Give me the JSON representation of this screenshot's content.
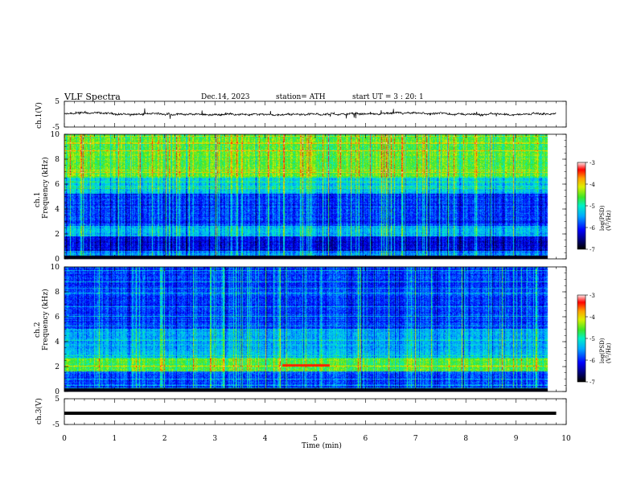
{
  "header": {
    "title": "VLF  Spectra",
    "date": "Dec.14, 2023",
    "station": "station= ATH",
    "start": "start  UT  =    3  : 20: 1"
  },
  "chart_data": [
    {
      "type": "line",
      "name": "ch1-waveform",
      "ylabel": "ch.1(V)",
      "ylim": [
        -5,
        5
      ],
      "yticks": [
        "5",
        "-5"
      ],
      "xlim": [
        0,
        10
      ]
    },
    {
      "type": "heatmap",
      "name": "ch1-spectrogram",
      "ylabel_top": "ch.1",
      "ylabel": "Frequency  (kHz)",
      "ylim": [
        0,
        10
      ],
      "yticks": [
        "0",
        "2",
        "4",
        "6",
        "8",
        "10"
      ],
      "xlim": [
        0,
        10
      ],
      "data_end_min": 9.8,
      "colorbar": {
        "label": "log(PSD)(V²/Hz)",
        "range": [
          -7,
          -3
        ],
        "ticks": [
          "-3",
          "-4",
          "-5",
          "-6",
          "-7"
        ]
      }
    },
    {
      "type": "heatmap",
      "name": "ch2-spectrogram",
      "ylabel_top": "ch.2",
      "ylabel": "Frequency  (kHz)",
      "ylim": [
        0,
        10
      ],
      "yticks": [
        "0",
        "2",
        "4",
        "6",
        "8",
        "10"
      ],
      "xlim": [
        0,
        10
      ],
      "data_end_min": 9.8,
      "colorbar": {
        "label": "log(PSD)(V²/Hz)",
        "range": [
          -7,
          -3
        ],
        "ticks": [
          "-3",
          "-4",
          "-5",
          "-6",
          "-7"
        ]
      }
    },
    {
      "type": "line",
      "name": "ch3-waveform",
      "ylabel": "ch.3(V)",
      "ylim": [
        -5,
        5
      ],
      "yticks": [
        "5",
        "-5"
      ],
      "xlim": [
        0,
        10
      ],
      "xlabel": "Time  (min)",
      "xticks": [
        "0",
        "1",
        "2",
        "3",
        "4",
        "5",
        "6",
        "7",
        "8",
        "9",
        "10"
      ]
    }
  ]
}
